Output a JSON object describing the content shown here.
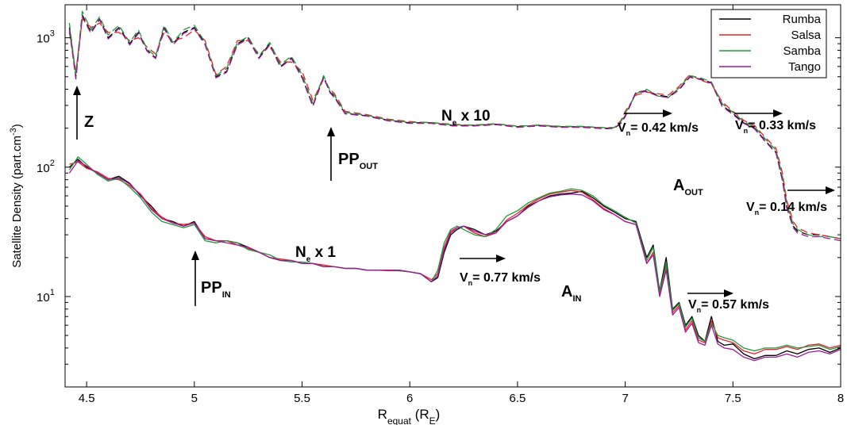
{
  "chart_data": {
    "type": "line",
    "xlabel": {
      "main": "R",
      "sub": "equat",
      "tail": " (R",
      "tail_sub": "E",
      "end": ")"
    },
    "ylabel": {
      "main": "Satellite Density (part.cm",
      "sup": "-3",
      "end": ")"
    },
    "xlim": [
      4.4,
      8.0
    ],
    "ylim": [
      2.0,
      1800
    ],
    "yscale": "log",
    "xticks": [
      4.5,
      5,
      5.5,
      6,
      6.5,
      7,
      7.5,
      8
    ],
    "xtick_labels": [
      "4.5",
      "5",
      "5.5",
      "6",
      "6.5",
      "7",
      "7.5",
      "8"
    ],
    "yticks": [
      10,
      100,
      1000
    ],
    "ytick_labels": [
      {
        "base": "10",
        "exp": "1"
      },
      {
        "base": "10",
        "exp": "2"
      },
      {
        "base": "10",
        "exp": "3"
      }
    ],
    "grid": false,
    "legend": {
      "position": "top-right",
      "entries": [
        "Rumba",
        "Salsa",
        "Samba",
        "Tango"
      ]
    },
    "colors": {
      "Rumba": "#000000",
      "Salsa": "#e8202a",
      "Samba": "#1f9a3a",
      "Tango": "#a0189a"
    },
    "series_groups": [
      {
        "label": "Ne x 1 (solid)",
        "style": "solid",
        "x": [
          4.42,
          4.46,
          4.5,
          4.55,
          4.6,
          4.65,
          4.7,
          4.75,
          4.8,
          4.85,
          4.9,
          4.95,
          5.0,
          5.05,
          5.1,
          5.15,
          5.2,
          5.25,
          5.3,
          5.35,
          5.4,
          5.45,
          5.5,
          5.55,
          5.6,
          5.65,
          5.7,
          5.75,
          5.8,
          5.85,
          5.9,
          5.95,
          6.0,
          6.05,
          6.1,
          6.13,
          6.16,
          6.19,
          6.22,
          6.25,
          6.3,
          6.35,
          6.4,
          6.45,
          6.5,
          6.55,
          6.6,
          6.65,
          6.7,
          6.75,
          6.8,
          6.85,
          6.9,
          6.95,
          7.0,
          7.05,
          7.1,
          7.13,
          7.16,
          7.19,
          7.22,
          7.25,
          7.28,
          7.31,
          7.34,
          7.37,
          7.4,
          7.43,
          7.46,
          7.5,
          7.55,
          7.6,
          7.65,
          7.7,
          7.75,
          7.8,
          7.85,
          7.9,
          7.95,
          8.0
        ],
        "series": [
          {
            "name": "Rumba",
            "values": [
              100,
              115,
              100,
              90,
              80,
              85,
              75,
              60,
              50,
              40,
              38,
              35,
              38,
              28,
              27,
              27,
              26,
              24,
              22,
              20,
              19,
              19,
              18,
              18,
              17,
              17,
              16.5,
              16.5,
              16,
              16,
              16,
              16,
              15.5,
              15,
              13,
              14,
              22,
              30,
              33,
              35,
              33,
              30,
              32,
              38,
              42,
              50,
              55,
              60,
              62,
              63,
              65,
              58,
              50,
              45,
              40,
              38,
              20,
              25,
              11,
              20,
              8,
              9,
              6,
              7,
              5,
              4.5,
              7,
              4.5,
              4.2,
              4.3,
              3.6,
              3.3,
              3.5,
              3.5,
              3.8,
              3.6,
              3.9,
              4.0,
              3.7,
              4.0
            ]
          },
          {
            "name": "Salsa",
            "values": [
              105,
              110,
              98,
              92,
              82,
              80,
              72,
              62,
              48,
              41,
              37,
              36,
              37,
              29,
              27,
              27,
              25,
              23.5,
              22,
              20,
              19.5,
              19,
              18,
              18,
              17.5,
              17,
              16.5,
              16.5,
              16,
              16,
              15.8,
              15.8,
              15.5,
              15,
              13.5,
              15,
              24,
              32,
              34,
              35,
              31,
              29,
              31,
              39,
              44,
              51,
              57,
              62,
              64,
              66,
              64,
              56,
              48,
              43,
              38,
              36,
              18,
              22,
              10.5,
              17,
              7.5,
              8.5,
              5.5,
              6.5,
              4.6,
              4.4,
              6.5,
              4.8,
              4.6,
              4.4,
              3.8,
              3.6,
              3.9,
              3.9,
              4.1,
              3.9,
              4.2,
              4.3,
              4.0,
              4.2
            ]
          },
          {
            "name": "Samba",
            "values": [
              95,
              120,
              105,
              88,
              78,
              82,
              70,
              58,
              45,
              38,
              36,
              34,
              36,
              27,
              26,
              27,
              26,
              23,
              22,
              21,
              19,
              18.5,
              18.5,
              18,
              17,
              17,
              16.5,
              16.5,
              16,
              16,
              16,
              15.8,
              15.5,
              15,
              13,
              16,
              26,
              33,
              35,
              33,
              30,
              29,
              33,
              42,
              46,
              53,
              58,
              63,
              65,
              68,
              66,
              60,
              51,
              46,
              41,
              37,
              19,
              24,
              10.8,
              18,
              7.8,
              8.8,
              5.8,
              6.8,
              4.8,
              4.5,
              6.2,
              5.0,
              4.8,
              4.6,
              4.0,
              3.8,
              4.0,
              4.0,
              4.2,
              4.0,
              4.1,
              4.2,
              3.9,
              4.1
            ]
          },
          {
            "name": "Tango",
            "values": [
              90,
              112,
              102,
              90,
              80,
              83,
              74,
              61,
              47,
              40,
              37,
              35,
              37,
              28,
              27,
              26,
              25,
              24,
              22,
              20,
              19,
              19,
              18,
              18,
              17,
              17,
              16.5,
              16.5,
              16,
              16,
              16,
              16,
              15.5,
              15,
              13,
              14.5,
              23,
              31,
              34,
              35,
              32,
              30,
              31,
              38,
              42,
              49,
              55,
              59,
              61,
              62,
              61,
              55,
              47,
              43,
              38,
              36,
              18,
              21,
              10,
              16,
              7.2,
              8.2,
              5.3,
              6.2,
              4.4,
              4.2,
              6.0,
              4.3,
              4.0,
              3.9,
              3.4,
              3.2,
              3.4,
              3.4,
              3.6,
              3.4,
              3.7,
              3.8,
              3.6,
              3.9
            ]
          }
        ]
      },
      {
        "label": "Ne x 10 (dashed)",
        "style": "dashed",
        "x": [
          4.42,
          4.45,
          4.48,
          4.52,
          4.56,
          4.6,
          4.65,
          4.7,
          4.74,
          4.78,
          4.82,
          4.86,
          4.9,
          4.95,
          5.0,
          5.05,
          5.1,
          5.15,
          5.2,
          5.25,
          5.3,
          5.35,
          5.4,
          5.45,
          5.5,
          5.55,
          5.6,
          5.63,
          5.65,
          5.7,
          5.8,
          5.9,
          6.0,
          6.1,
          6.2,
          6.3,
          6.4,
          6.5,
          6.6,
          6.7,
          6.8,
          6.9,
          6.95,
          6.98,
          7.0,
          7.05,
          7.1,
          7.15,
          7.2,
          7.25,
          7.3,
          7.35,
          7.4,
          7.45,
          7.5,
          7.55,
          7.6,
          7.65,
          7.7,
          7.73,
          7.75,
          7.78,
          7.8,
          7.85,
          7.9,
          7.95,
          8.0
        ],
        "series": [
          {
            "name": "Rumba",
            "values": [
              1200,
              500,
              1500,
              1100,
              1400,
              1000,
              1200,
              900,
              1100,
              800,
              700,
              1200,
              900,
              1100,
              1200,
              900,
              500,
              550,
              900,
              1000,
              700,
              900,
              600,
              700,
              500,
              300,
              500,
              380,
              350,
              260,
              250,
              230,
              220,
              220,
              210,
              210,
              215,
              205,
              210,
              205,
              205,
              200,
              200,
              220,
              250,
              380,
              390,
              360,
              350,
              400,
              500,
              480,
              450,
              300,
              260,
              220,
              200,
              160,
              130,
              80,
              50,
              35,
              32,
              30,
              30,
              29,
              28
            ]
          },
          {
            "name": "Salsa",
            "values": [
              1100,
              550,
              1400,
              1200,
              1300,
              1100,
              1100,
              950,
              1000,
              850,
              750,
              1100,
              950,
              1000,
              1150,
              950,
              520,
              600,
              950,
              950,
              750,
              850,
              650,
              650,
              550,
              330,
              480,
              400,
              370,
              270,
              255,
              235,
              225,
              220,
              215,
              210,
              215,
              208,
              210,
              205,
              205,
              202,
              202,
              230,
              270,
              360,
              380,
              370,
              360,
              420,
              520,
              470,
              440,
              320,
              270,
              230,
              210,
              170,
              140,
              90,
              55,
              38,
              34,
              31,
              30,
              29,
              28
            ]
          },
          {
            "name": "Samba",
            "values": [
              1300,
              520,
              1600,
              1150,
              1450,
              1050,
              1250,
              920,
              1150,
              820,
              720,
              1250,
              920,
              1150,
              1250,
              920,
              510,
              580,
              920,
              1020,
              720,
              920,
              620,
              720,
              520,
              310,
              510,
              390,
              360,
              265,
              252,
              232,
              222,
              222,
              212,
              212,
              217,
              207,
              212,
              207,
              207,
              202,
              203,
              225,
              260,
              370,
              400,
              355,
              345,
              410,
              510,
              490,
              455,
              310,
              265,
              225,
              205,
              165,
              135,
              85,
              52,
              36,
              33,
              30,
              29,
              29,
              28
            ]
          },
          {
            "name": "Tango",
            "values": [
              1150,
              480,
              1450,
              1080,
              1380,
              980,
              1180,
              880,
              1080,
              790,
              690,
              1180,
              880,
              1080,
              1180,
              880,
              490,
              540,
              880,
              980,
              690,
              880,
              590,
              690,
              490,
              295,
              490,
              375,
              345,
              258,
              248,
              228,
              218,
              218,
              208,
              208,
              213,
              203,
              208,
              203,
              203,
              198,
              199,
              218,
              245,
              375,
              385,
              355,
              345,
              395,
              495,
              475,
              445,
              295,
              255,
              218,
              198,
              158,
              128,
              78,
              48,
              34,
              31,
              29,
              29,
              28,
              27
            ]
          }
        ]
      }
    ],
    "annotations": [
      {
        "id": "z",
        "text": "Z",
        "sub": ""
      },
      {
        "id": "pp-out",
        "text": "PP",
        "sub": "OUT"
      },
      {
        "id": "ne10",
        "text": "N",
        "sub": "e",
        "tail": " x 10"
      },
      {
        "id": "vn-042",
        "text": "V",
        "sub": "n",
        "tail": "= 0.42 km/s"
      },
      {
        "id": "vn-033",
        "text": "V",
        "sub": "n",
        "tail": "= 0.33 km/s"
      },
      {
        "id": "a-out",
        "text": "A",
        "sub": "OUT"
      },
      {
        "id": "vn-014",
        "text": "V",
        "sub": "n",
        "tail": "= 0.14 km/s"
      },
      {
        "id": "pp-in",
        "text": "PP",
        "sub": "IN"
      },
      {
        "id": "ne1",
        "text": "N",
        "sub": "e",
        "tail": " x 1"
      },
      {
        "id": "vn-077",
        "text": "V",
        "sub": "n",
        "tail": "= 0.77 km/s"
      },
      {
        "id": "a-in",
        "text": "A",
        "sub": "IN"
      },
      {
        "id": "vn-057",
        "text": "V",
        "sub": "n",
        "tail": "= 0.57 km/s"
      }
    ]
  }
}
